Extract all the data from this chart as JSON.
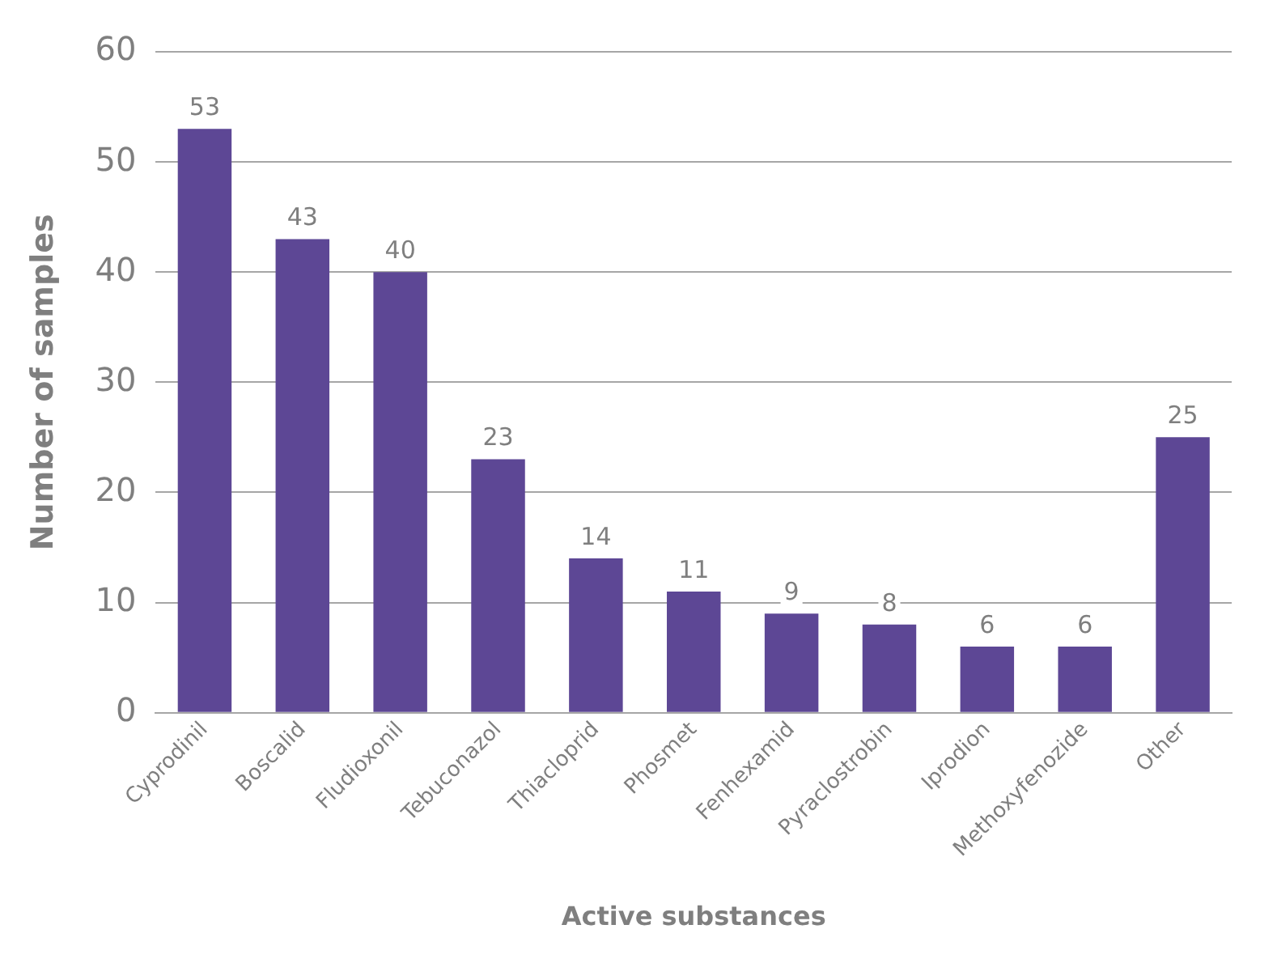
{
  "chart_data": {
    "type": "bar",
    "xlabel": "Active substances",
    "ylabel": "Number of samples",
    "categories": [
      "Cyprodinil",
      "Boscalid",
      "Fludioxonil",
      "Tebuconazol",
      "Thiacloprid",
      "Phosmet",
      "Fenhexamid",
      "Pyraclostrobin",
      "Iprodion",
      "Methoxyfenozide",
      "Other"
    ],
    "values": [
      53,
      43,
      40,
      23,
      14,
      11,
      9,
      8,
      6,
      6,
      25
    ],
    "color": "#5d4795",
    "ylim": [
      0,
      60
    ],
    "yticks": [
      0,
      10,
      20,
      30,
      40,
      50,
      60
    ],
    "grid": "y",
    "legend": false,
    "data_labels": true
  }
}
